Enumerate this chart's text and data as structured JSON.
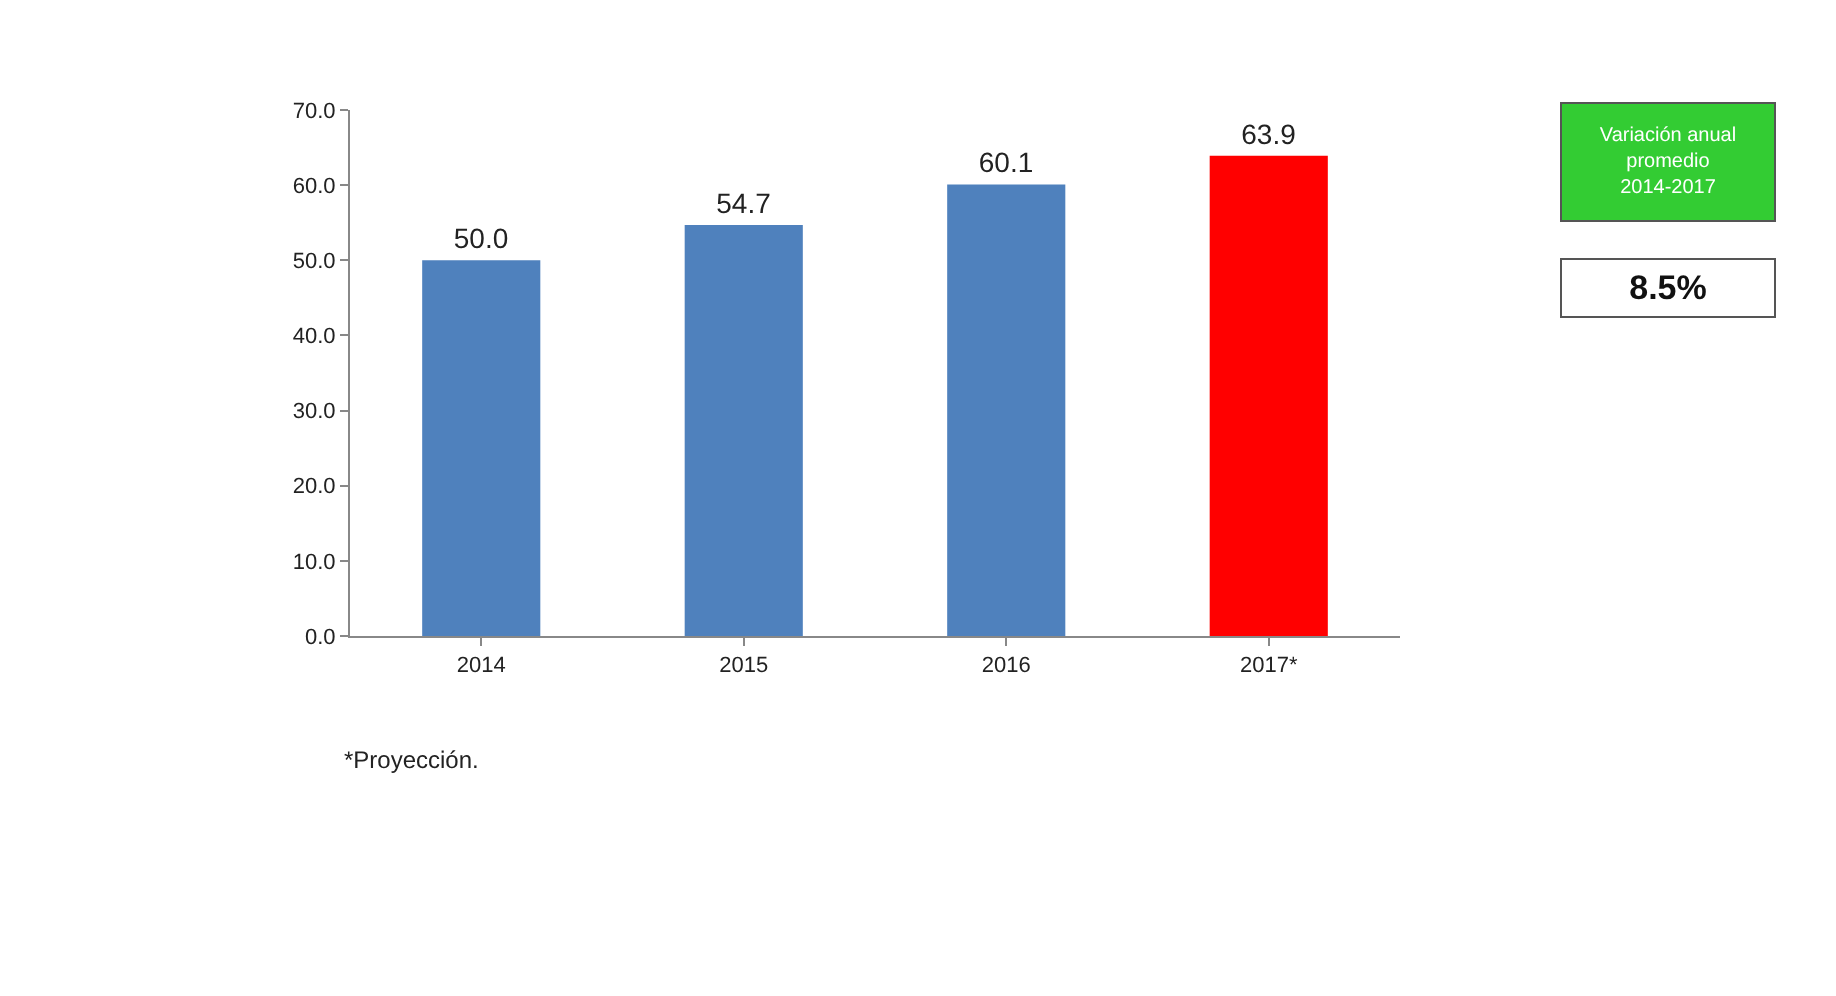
{
  "chart_data": {
    "type": "bar",
    "categories": [
      "2014",
      "2015",
      "2016",
      "2017*"
    ],
    "values": [
      50.0,
      54.7,
      60.1,
      63.9
    ],
    "value_labels": [
      "50.0",
      "54.7",
      "60.1",
      "63.9"
    ],
    "colors": [
      "#4f81bd",
      "#4f81bd",
      "#4f81bd",
      "#ff0000"
    ],
    "ylim": [
      0,
      70
    ],
    "yticks": [
      {
        "value": 0,
        "label": "0.0"
      },
      {
        "value": 10,
        "label": "10.0"
      },
      {
        "value": 20,
        "label": "20.0"
      },
      {
        "value": 30,
        "label": "30.0"
      },
      {
        "value": 40,
        "label": "40.0"
      },
      {
        "value": 50,
        "label": "50.0"
      },
      {
        "value": 60,
        "label": "60.0"
      },
      {
        "value": 70,
        "label": "70.0"
      }
    ],
    "legend": false,
    "annotations": [
      "Variación anual promedio 2014-2017",
      "8.5%",
      "*Proyección."
    ]
  }
}
